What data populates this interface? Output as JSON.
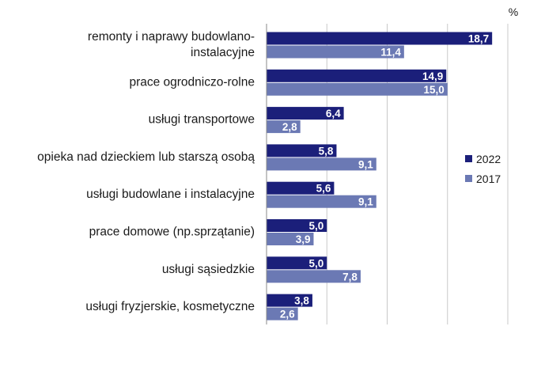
{
  "chart_data": {
    "type": "bar",
    "orientation": "horizontal",
    "unit": "%",
    "categories": [
      [
        "remonty i naprawy budowlano-",
        "instalacyjne"
      ],
      [
        "prace ogrodniczo-rolne"
      ],
      [
        "usługi transportowe"
      ],
      [
        "opieka nad dzieckiem lub starszą osobą"
      ],
      [
        "usługi budowlane i instalacyjne"
      ],
      [
        "prace domowe  (np.sprzątanie)"
      ],
      [
        "usługi sąsiedzkie"
      ],
      [
        "usługi fryzjerskie, kosmetyczne"
      ]
    ],
    "series": [
      {
        "name": "2022",
        "color": "#1b1f7a",
        "values": [
          18.7,
          14.9,
          6.4,
          5.8,
          5.6,
          5.0,
          5.0,
          3.8
        ],
        "labels": [
          "18,7",
          "14,9",
          "6,4",
          "5,8",
          "5,6",
          "5,0",
          "5,0",
          "3,8"
        ]
      },
      {
        "name": "2017",
        "color": "#6b79b4",
        "values": [
          11.4,
          15.0,
          2.8,
          9.1,
          9.1,
          3.9,
          7.8,
          2.6
        ],
        "labels": [
          "11,4",
          "15,0",
          "2,8",
          "9,1",
          "9,1",
          "3,9",
          "7,8",
          "2,6"
        ]
      }
    ],
    "xlim": [
      0,
      20
    ],
    "grid": true,
    "legend_position": "right"
  }
}
